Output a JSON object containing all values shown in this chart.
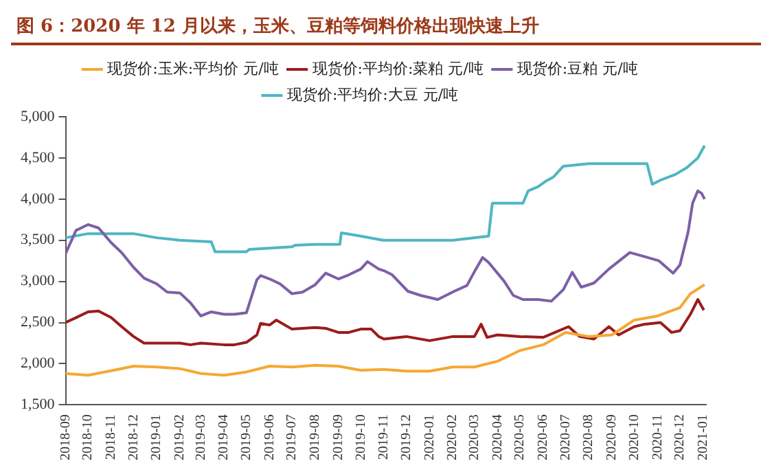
{
  "chart_data": {
    "type": "line",
    "title": "图 6：2020 年 12 月以来，玉米、豆粕等饲料价格出现快速上升",
    "xticks": [
      "2018-09",
      "2018-10",
      "2018-11",
      "2018-12",
      "2019-01",
      "2019-02",
      "2019-03",
      "2019-04",
      "2019-05",
      "2019-06",
      "2019-07",
      "2019-08",
      "2019-09",
      "2019-10",
      "2019-11",
      "2019-12",
      "2020-01",
      "2020-02",
      "2020-03",
      "2020-04",
      "2020-05",
      "2020-06",
      "2020-07",
      "2020-08",
      "2020-09",
      "2020-10",
      "2020-11",
      "2020-12",
      "2021-01"
    ],
    "xlim": [
      "2018-09-01",
      "2021-01-05"
    ],
    "ylim": [
      1500,
      5000
    ],
    "yticks": [
      {
        "value": 1500,
        "label": "1,500"
      },
      {
        "value": 2000,
        "label": "2,000"
      },
      {
        "value": 2500,
        "label": "2,500"
      },
      {
        "value": 3000,
        "label": "3,000"
      },
      {
        "value": 3500,
        "label": "3,500"
      },
      {
        "value": 4000,
        "label": "4,000"
      },
      {
        "value": 4500,
        "label": "4,500"
      },
      {
        "value": 5000,
        "label": "5,000"
      }
    ],
    "grid": false,
    "legend": "top",
    "marker": "none",
    "line_style": "solid",
    "series": [
      {
        "name": "现货价:玉米:平均价 元/吨",
        "color": "#f5a833",
        "x": [
          "2018-09-01",
          "2018-10-01",
          "2018-11-10",
          "2018-12-01",
          "2019-01-01",
          "2019-02-01",
          "2019-03-01",
          "2019-04-01",
          "2019-05-01",
          "2019-06-01",
          "2019-07-01",
          "2019-08-01",
          "2019-09-01",
          "2019-10-01",
          "2019-11-01",
          "2019-12-01",
          "2020-01-01",
          "2020-02-01",
          "2020-03-01",
          "2020-04-01",
          "2020-05-01",
          "2020-06-01",
          "2020-07-01",
          "2020-08-01",
          "2020-09-01",
          "2020-10-01",
          "2020-11-01",
          "2020-12-01",
          "2020-12-15",
          "2021-01-03"
        ],
        "values": [
          1880,
          1860,
          1930,
          1970,
          1960,
          1940,
          1880,
          1860,
          1900,
          1970,
          1960,
          1980,
          1970,
          1920,
          1930,
          1910,
          1910,
          1960,
          1960,
          2030,
          2160,
          2230,
          2380,
          2330,
          2350,
          2530,
          2580,
          2680,
          2850,
          2960
        ]
      },
      {
        "name": "现货价:平均价:菜粕 元/吨",
        "color": "#9b1c1c",
        "x": [
          "2018-09-01",
          "2018-09-15",
          "2018-10-01",
          "2018-10-15",
          "2018-11-01",
          "2018-11-15",
          "2018-12-01",
          "2018-12-15",
          "2019-01-01",
          "2019-02-01",
          "2019-02-15",
          "2019-03-01",
          "2019-04-01",
          "2019-04-15",
          "2019-05-01",
          "2019-05-15",
          "2019-05-20",
          "2019-06-01",
          "2019-06-10",
          "2019-07-01",
          "2019-08-01",
          "2019-08-15",
          "2019-09-01",
          "2019-09-15",
          "2019-10-01",
          "2019-10-15",
          "2019-10-25",
          "2019-11-01",
          "2019-12-01",
          "2020-01-01",
          "2020-02-01",
          "2020-03-01",
          "2020-03-10",
          "2020-03-18",
          "2020-04-01",
          "2020-05-01",
          "2020-06-01",
          "2020-07-05",
          "2020-07-20",
          "2020-08-08",
          "2020-08-28",
          "2020-09-10",
          "2020-10-01",
          "2020-10-15",
          "2020-11-05",
          "2020-11-20",
          "2020-12-01",
          "2020-12-15",
          "2020-12-25",
          "2021-01-02"
        ],
        "values": [
          2500,
          2560,
          2630,
          2640,
          2560,
          2450,
          2330,
          2250,
          2250,
          2250,
          2230,
          2250,
          2230,
          2230,
          2260,
          2350,
          2490,
          2470,
          2530,
          2420,
          2440,
          2430,
          2380,
          2380,
          2420,
          2420,
          2330,
          2300,
          2330,
          2280,
          2330,
          2330,
          2480,
          2320,
          2350,
          2330,
          2320,
          2450,
          2330,
          2300,
          2450,
          2350,
          2450,
          2480,
          2500,
          2380,
          2400,
          2600,
          2780,
          2650
        ]
      },
      {
        "name": "现货价:豆粕 元/吨",
        "color": "#7d5fa6",
        "x": [
          "2018-09-01",
          "2018-09-15",
          "2018-10-01",
          "2018-10-15",
          "2018-11-01",
          "2018-11-15",
          "2018-12-01",
          "2018-12-15",
          "2019-01-01",
          "2019-01-15",
          "2019-02-01",
          "2019-02-15",
          "2019-03-01",
          "2019-03-15",
          "2019-04-01",
          "2019-04-15",
          "2019-05-01",
          "2019-05-15",
          "2019-05-20",
          "2019-06-01",
          "2019-06-15",
          "2019-07-01",
          "2019-07-15",
          "2019-08-01",
          "2019-08-15",
          "2019-09-01",
          "2019-09-15",
          "2019-10-01",
          "2019-10-10",
          "2019-10-25",
          "2019-11-01",
          "2019-11-12",
          "2019-12-03",
          "2019-12-20",
          "2020-01-12",
          "2020-02-03",
          "2020-02-20",
          "2020-03-03",
          "2020-03-12",
          "2020-03-20",
          "2020-04-10",
          "2020-04-22",
          "2020-05-05",
          "2020-05-25",
          "2020-06-12",
          "2020-06-28",
          "2020-07-10",
          "2020-07-22",
          "2020-08-08",
          "2020-08-28",
          "2020-09-25",
          "2020-10-15",
          "2020-11-03",
          "2020-11-22",
          "2020-12-01",
          "2020-12-12",
          "2020-12-18",
          "2020-12-25",
          "2020-12-30",
          "2021-01-03"
        ],
        "values": [
          3340,
          3620,
          3690,
          3650,
          3470,
          3350,
          3170,
          3040,
          2970,
          2870,
          2860,
          2740,
          2580,
          2630,
          2600,
          2600,
          2620,
          3020,
          3070,
          3030,
          2970,
          2850,
          2870,
          2960,
          3100,
          3030,
          3080,
          3150,
          3240,
          3150,
          3130,
          3080,
          2880,
          2830,
          2780,
          2880,
          2950,
          3150,
          3290,
          3230,
          3000,
          2830,
          2780,
          2780,
          2760,
          2900,
          3110,
          2930,
          2980,
          3150,
          3350,
          3300,
          3250,
          3100,
          3200,
          3600,
          3950,
          4100,
          4070,
          4000
        ]
      },
      {
        "name": "现货价:平均价:大豆 元/吨",
        "color": "#4fb6c2",
        "x": [
          "2018-09-01",
          "2018-10-01",
          "2018-12-01",
          "2019-01-01",
          "2019-02-01",
          "2019-03-15",
          "2019-03-20",
          "2019-05-01",
          "2019-05-05",
          "2019-07-01",
          "2019-07-05",
          "2019-08-01",
          "2019-09-03",
          "2019-09-05",
          "2019-10-01",
          "2019-10-31",
          "2020-02-01",
          "2020-03-20",
          "2020-03-25",
          "2020-05-05",
          "2020-05-12",
          "2020-05-25",
          "2020-06-05",
          "2020-06-15",
          "2020-06-28",
          "2020-08-01",
          "2020-10-18",
          "2020-10-25",
          "2020-11-05",
          "2020-11-25",
          "2020-12-10",
          "2020-12-25",
          "2021-01-03"
        ],
        "values": [
          3530,
          3580,
          3580,
          3530,
          3500,
          3480,
          3360,
          3360,
          3390,
          3420,
          3440,
          3450,
          3450,
          3590,
          3550,
          3500,
          3500,
          3550,
          3950,
          3950,
          4100,
          4150,
          4220,
          4270,
          4400,
          4430,
          4430,
          4180,
          4230,
          4300,
          4380,
          4500,
          4650
        ]
      }
    ]
  }
}
